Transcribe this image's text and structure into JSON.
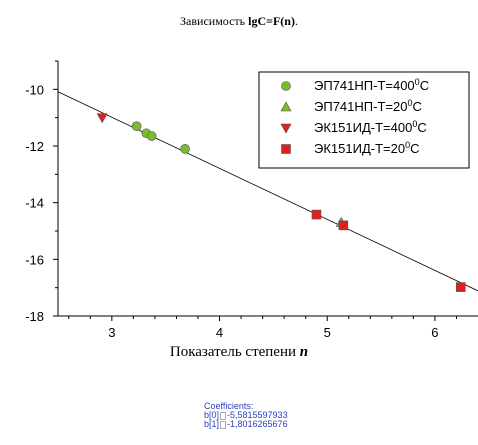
{
  "title": {
    "prefix": "Зависимость ",
    "formula": "lgC=F(n)",
    "suffix": "."
  },
  "xlabel": {
    "text": "Показатель степени ",
    "var": "n"
  },
  "coefficients": {
    "header": "Coefficients:",
    "b0_label": "b[0]",
    "b0_value": "-5,5815597933",
    "b1_label": "b[1]",
    "b1_value": "-1,8016265676"
  },
  "chart_data": {
    "type": "scatter",
    "title": "Зависимость lgC=F(n).",
    "xlabel": "Показатель степени n",
    "ylabel": "",
    "xlim": [
      2.5,
      6.4
    ],
    "ylim": [
      -18,
      -9
    ],
    "xticks": [
      3,
      4,
      5,
      6
    ],
    "yticks": [
      -10,
      -12,
      -14,
      -16,
      -18
    ],
    "legend_position": "top-right",
    "series": [
      {
        "name": "ЭП741НП-Т=400",
        "name_sup": "0",
        "name_tail": "С",
        "marker": "circle",
        "color": "#7dbb2e",
        "points": [
          [
            3.23,
            -11.3
          ],
          [
            3.32,
            -11.55
          ],
          [
            3.37,
            -11.65
          ],
          [
            3.68,
            -12.1
          ]
        ]
      },
      {
        "name": "ЭП741НП-Т=20",
        "name_sup": "0",
        "name_tail": "С",
        "marker": "triangle-up",
        "color": "#7dbb2e",
        "points": [
          [
            5.13,
            -14.7
          ]
        ]
      },
      {
        "name": "ЭК151ИД-Т=400",
        "name_sup": "0",
        "name_tail": "С",
        "marker": "triangle-down",
        "color": "#e02020",
        "points": [
          [
            2.91,
            -11.0
          ]
        ]
      },
      {
        "name": "ЭК151ИД-Т=20",
        "name_sup": "0",
        "name_tail": "С",
        "marker": "square",
        "color": "#e02020",
        "points": [
          [
            4.9,
            -14.42
          ],
          [
            5.15,
            -14.8
          ],
          [
            6.24,
            -16.98
          ]
        ]
      }
    ],
    "fit_line": {
      "intercept": -5.5815597933,
      "slope": -1.8016265676
    }
  }
}
